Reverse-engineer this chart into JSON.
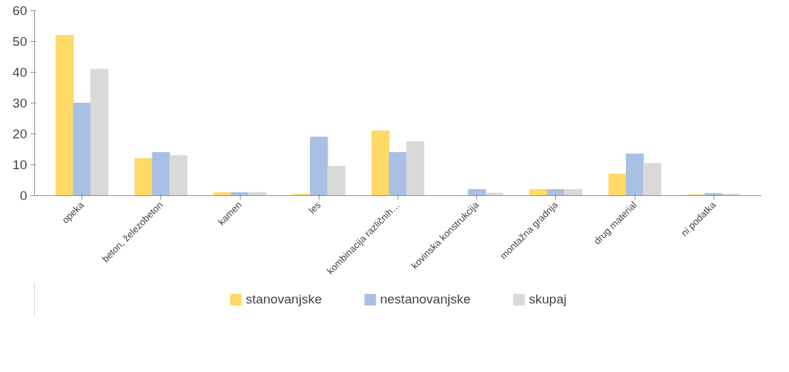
{
  "chart_data": {
    "type": "bar",
    "categories": [
      "opeka",
      "beton, železobeton",
      "kamen",
      "les",
      "kombinacija različnih…",
      "kovinska konstrukcija",
      "montažna gradnja",
      "drug material",
      "ni podatka"
    ],
    "series": [
      {
        "name": "stanovanjske",
        "color": "#ffd966",
        "values": [
          52,
          12,
          1,
          0.5,
          21,
          0,
          2,
          7,
          0.3
        ]
      },
      {
        "name": "nestanovanjske",
        "color": "#a9c0e4",
        "values": [
          30,
          14,
          1,
          19,
          14,
          2,
          2,
          13.5,
          0.7
        ]
      },
      {
        "name": "skupaj",
        "color": "#d9d9d9",
        "values": [
          41,
          13,
          1,
          9.5,
          17.5,
          0.8,
          2,
          10.5,
          0.5
        ]
      }
    ],
    "ylim": [
      0,
      60
    ],
    "yticks": [
      0,
      10,
      20,
      30,
      40,
      50,
      60
    ],
    "grid": false,
    "legend": "bottom"
  }
}
